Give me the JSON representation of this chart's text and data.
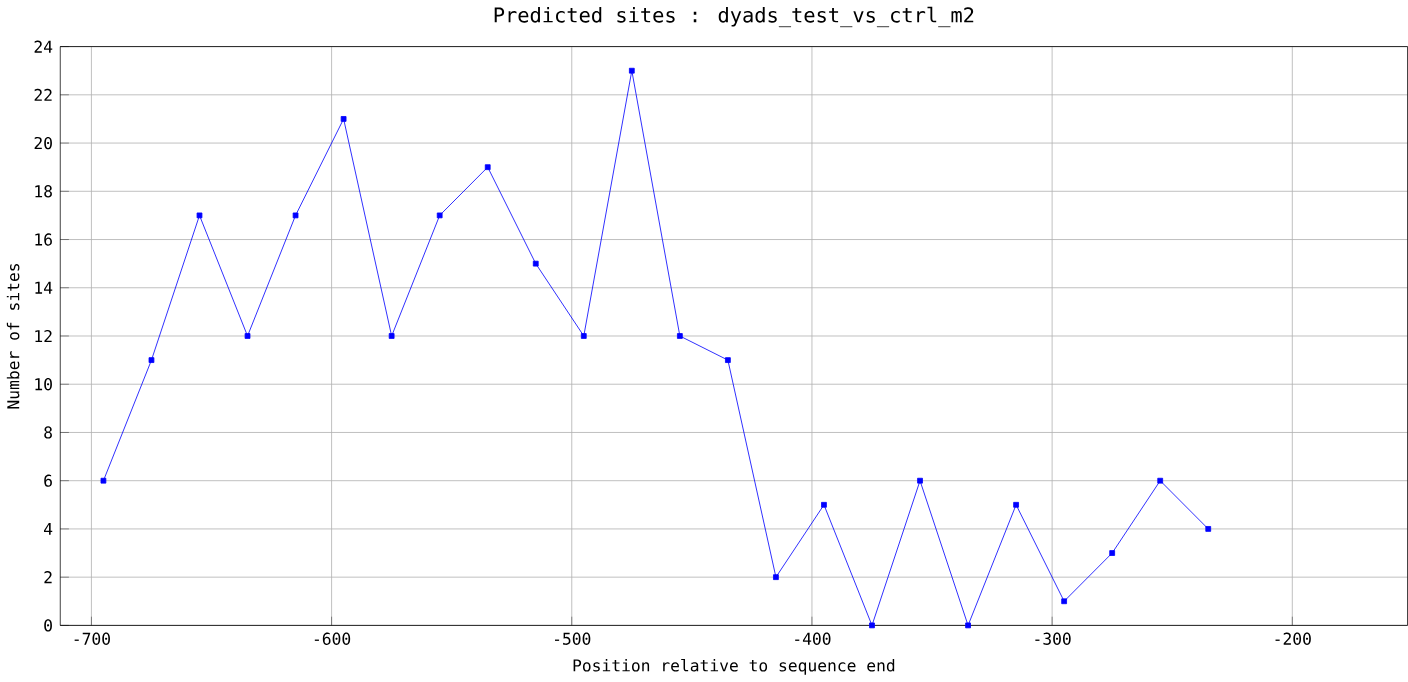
{
  "chart_data": {
    "type": "line",
    "title": "Predicted sites : dyads_test_vs_ctrl_m2",
    "xlabel": "Position relative to sequence end",
    "ylabel": "Number of sites",
    "x": [
      -695,
      -675,
      -655,
      -635,
      -615,
      -595,
      -575,
      -555,
      -535,
      -515,
      -495,
      -475,
      -455,
      -435,
      -415,
      -395,
      -375,
      -355,
      -335,
      -315,
      -295,
      -275,
      -255,
      -235
    ],
    "series": [
      {
        "color": "#0000ff",
        "values": [
          6,
          11,
          17,
          12,
          17,
          21,
          12,
          17,
          19,
          15,
          12,
          23,
          12,
          11,
          2,
          5,
          0,
          6,
          0,
          5,
          1,
          3,
          6,
          4
        ]
      }
    ],
    "xlim": [
      -713,
      -152
    ],
    "xticks": [
      -700,
      -600,
      -500,
      -400,
      -300,
      -200
    ],
    "ylim": [
      0,
      24
    ],
    "yticks": [
      0,
      2,
      4,
      6,
      8,
      10,
      12,
      14,
      16,
      18,
      20,
      22,
      24
    ],
    "grid": true,
    "marker": "square",
    "line_style": "solid"
  }
}
